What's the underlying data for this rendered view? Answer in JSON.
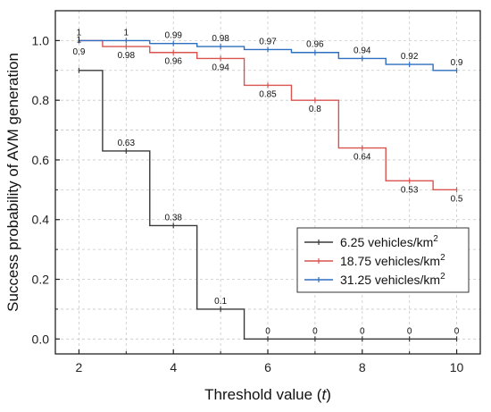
{
  "chart_data": {
    "type": "line",
    "step": true,
    "title": "",
    "xlabel": "Threshold value (",
    "xlabel_var": "t",
    "xlabel_tail": ")",
    "ylabel": "Success probability of AVM generation",
    "xlim": [
      1.5,
      10.5
    ],
    "ylim": [
      -0.05,
      1.1
    ],
    "xticks": [
      "2",
      "4",
      "6",
      "8",
      "10"
    ],
    "yticks": [
      "0.0",
      "0.2",
      "0.4",
      "0.6",
      "0.8",
      "1.0"
    ],
    "grid": true,
    "legend_position": "bottom-right",
    "x": [
      2,
      3,
      4,
      5,
      6,
      7,
      8,
      9,
      10
    ],
    "series": [
      {
        "name": "6.25 vehicles/km",
        "unit_sup": "2",
        "color": "#3a3a3a",
        "values": [
          0.9,
          0.63,
          0.38,
          0.1,
          0,
          0,
          0,
          0,
          0
        ],
        "labels": [
          "0.9",
          "0.63",
          "0.38",
          "0.1",
          "0",
          "0",
          "0",
          "0",
          "0"
        ]
      },
      {
        "name": "18.75 vehicles/km",
        "unit_sup": "2",
        "color": "#d9534f",
        "values": [
          1,
          0.98,
          0.96,
          0.94,
          0.85,
          0.8,
          0.64,
          0.53,
          0.5
        ],
        "labels": [
          "1",
          "0.98",
          "0.96",
          "0.94",
          "0.85",
          "0.8",
          "0.64",
          "0.53",
          "0.5"
        ]
      },
      {
        "name": "31.25 vehicles/km",
        "unit_sup": "2",
        "color": "#2e6fbf",
        "values": [
          1,
          1,
          0.99,
          0.98,
          0.97,
          0.96,
          0.94,
          0.92,
          0.9
        ],
        "labels": [
          "1",
          "1",
          "0.99",
          "0.98",
          "0.97",
          "0.96",
          "0.94",
          "0.92",
          "0.9"
        ]
      }
    ]
  }
}
